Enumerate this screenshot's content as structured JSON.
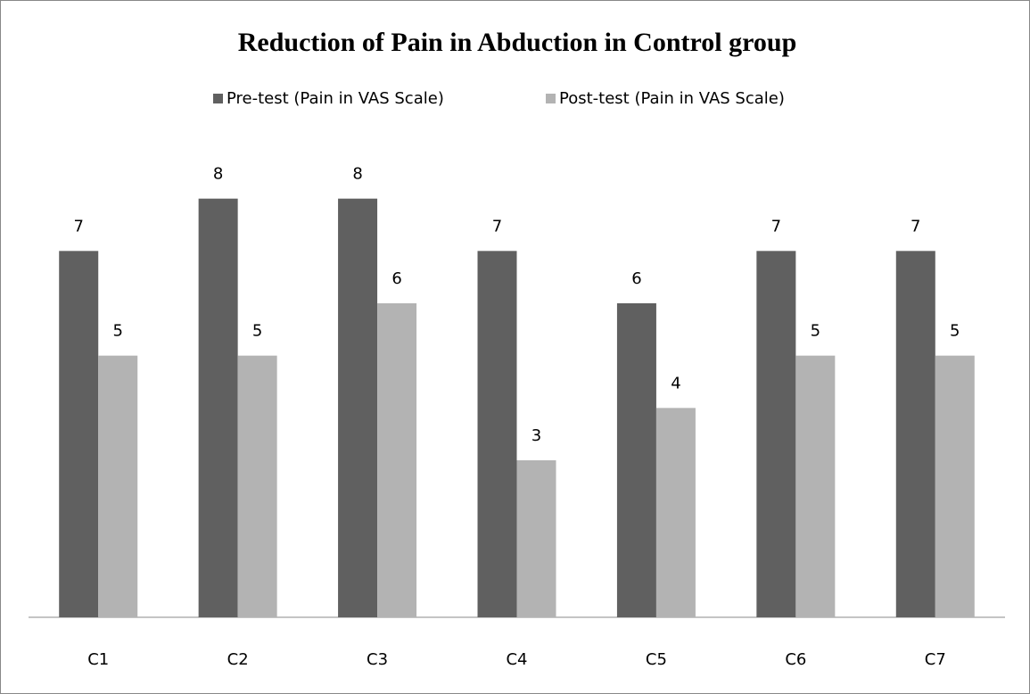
{
  "chart_data": {
    "type": "bar",
    "title": "Reduction of Pain in Abduction in Control group",
    "categories": [
      "C1",
      "C2",
      "C3",
      "C4",
      "C5",
      "C6",
      "C7"
    ],
    "series": [
      {
        "name": "Pre-test (Pain in VAS Scale)",
        "color": "#606060",
        "values": [
          7,
          8,
          8,
          7,
          6,
          7,
          7
        ]
      },
      {
        "name": "Post-test (Pain in VAS Scale)",
        "color": "#b3b3b3",
        "values": [
          5,
          5,
          6,
          3,
          4,
          5,
          5
        ]
      }
    ],
    "ylim": [
      0,
      9
    ],
    "legend": "top"
  }
}
